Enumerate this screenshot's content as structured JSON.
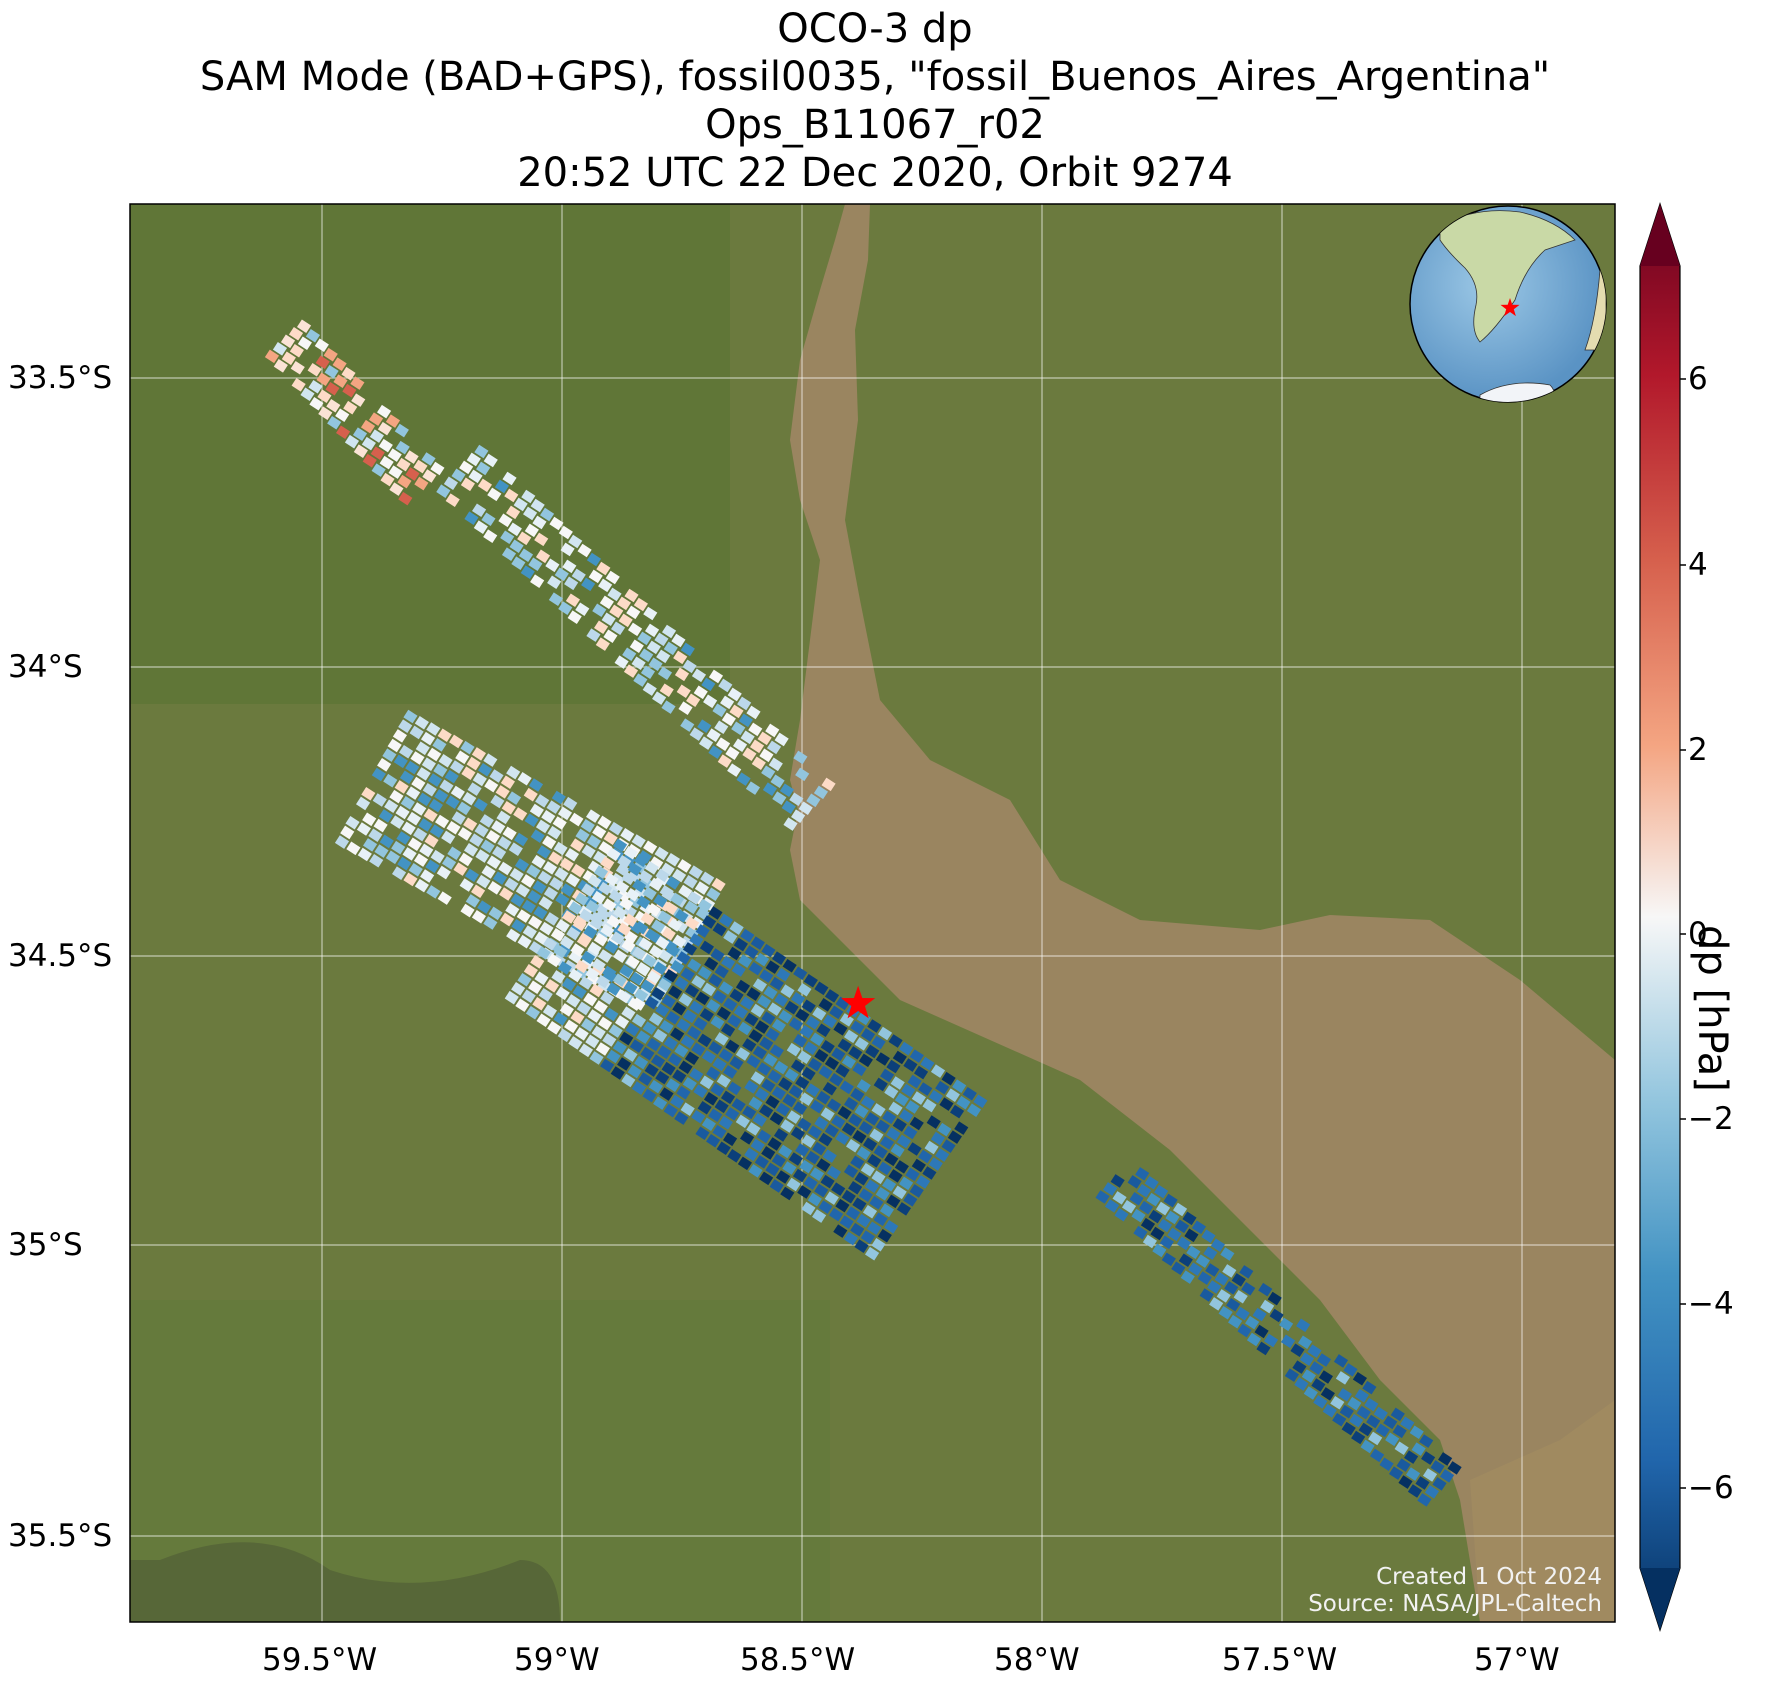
{
  "title": {
    "line1": "OCO-3 dp",
    "line2": "SAM Mode (BAD+GPS), fossil0035, \"fossil_Buenos_Aires_Argentina\"",
    "line3": "Ops_B11067_r02",
    "line4": "20:52 UTC 22 Dec 2020, Orbit 9274"
  },
  "map": {
    "lat_ticks": [
      "33.5°S",
      "34°S",
      "34.5°S",
      "35°S",
      "35.5°S"
    ],
    "lon_ticks": [
      "59.5°W",
      "59°W",
      "58.5°W",
      "58°W",
      "57.5°W",
      "57°W"
    ],
    "lon_range": [
      -59.9,
      -56.8
    ],
    "lat_range": [
      -35.7,
      -33.2
    ],
    "target": {
      "lon": -58.38,
      "lat": -34.61,
      "marker": "red-star-icon"
    },
    "colors": {
      "land": "#6b7a3e",
      "water": "#9a8560",
      "target": "#ff0000"
    }
  },
  "colorbar": {
    "label": "dp [hPa]",
    "ticks": [
      "6",
      "4",
      "2",
      "0",
      "−2",
      "−4",
      "−6"
    ],
    "range": [
      -7.5,
      7.5
    ],
    "colormap": "RdBu_r"
  },
  "credits": {
    "created": "Created 1 Oct 2024",
    "source": "Source: NASA/JPL-Caltech"
  }
}
